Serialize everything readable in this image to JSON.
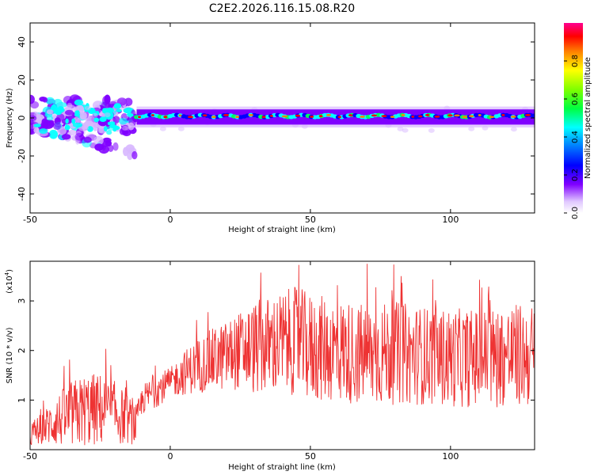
{
  "title": "C2E2.2026.116.15.08.R20",
  "chart_data": [
    {
      "type": "heatmap",
      "name": "spectrogram",
      "xlabel": "Height of straight line (km)",
      "ylabel": "Frequency (Hz)",
      "xlim": [
        -50,
        130
      ],
      "ylim": [
        -50,
        50
      ],
      "xticks": [
        -50,
        0,
        50,
        100
      ],
      "yticks": [
        -40,
        -20,
        0,
        20,
        40
      ],
      "xtick_labels": [
        "-50",
        "0",
        "50",
        "100"
      ],
      "ytick_labels": [
        "-40",
        "-20",
        "0",
        "20",
        "40"
      ],
      "colorbar": {
        "label": "Normalized spectral amplitude",
        "range": [
          0.0,
          1.0
        ],
        "ticks": [
          0.0,
          0.2,
          0.4,
          0.6,
          0.8
        ],
        "tick_labels": [
          "0.0",
          "0.2",
          "0.4",
          "0.6",
          "0.8"
        ],
        "colors": [
          "#ffffff",
          "#d8b8ff",
          "#8000ff",
          "#0000ff",
          "#00ffff",
          "#00ff00",
          "#ffff00",
          "#ff8000",
          "#ff0000",
          "#ff00a0"
        ]
      },
      "band_center_hz": [
        {
          "x": -50,
          "y": 3
        },
        {
          "x": -45,
          "y": 4
        },
        {
          "x": -40,
          "y": 2
        },
        {
          "x": -35,
          "y": 3
        },
        {
          "x": -30,
          "y": 5
        },
        {
          "x": -25,
          "y": 6
        },
        {
          "x": -20,
          "y": 2
        },
        {
          "x": -15,
          "y": 1
        },
        {
          "x": -12,
          "y": 1
        },
        {
          "x": 130,
          "y": 1
        }
      ],
      "scatter_branch_hz": [
        {
          "x": -50,
          "y": -3
        },
        {
          "x": -40,
          "y": -4
        },
        {
          "x": -30,
          "y": -2
        },
        {
          "x": -25,
          "y": -5
        },
        {
          "x": -20,
          "y": -10
        },
        {
          "x": -15,
          "y": -17
        },
        {
          "x": -14,
          "y": -20
        }
      ],
      "colors": {
        "band_peak": "#ff0000",
        "band_mid": "#00ffff",
        "band_edge": "#8000ff",
        "halo": "#d8b8ff"
      }
    },
    {
      "type": "line",
      "name": "snr",
      "xlabel": "Height of straight line (km)",
      "ylabel": "SNR (10 * v/v)",
      "yscale_label": "(x10",
      "yscale_exponent": "4",
      "yscale_close": ")",
      "xlim": [
        -50,
        130
      ],
      "ylim": [
        0,
        3.8
      ],
      "xticks": [
        -50,
        0,
        50,
        100
      ],
      "yticks": [
        1,
        2,
        3
      ],
      "xtick_labels": [
        "-50",
        "0",
        "50",
        "100"
      ],
      "ytick_labels": [
        "1",
        "2",
        "3"
      ],
      "envelope_x": [
        -50,
        -45,
        -40,
        -35,
        -30,
        -25,
        -20,
        -15,
        -12,
        -10,
        -5,
        0,
        5,
        10,
        15,
        20,
        25,
        30,
        35,
        40,
        45,
        50,
        60,
        70,
        80,
        90,
        100,
        110,
        120,
        130
      ],
      "envelope_mean": [
        0.3,
        0.45,
        0.6,
        0.7,
        0.8,
        0.8,
        0.75,
        0.6,
        0.5,
        1.0,
        1.2,
        1.35,
        1.55,
        1.7,
        1.8,
        1.9,
        2.0,
        2.05,
        2.1,
        2.15,
        2.2,
        2.05,
        2.0,
        1.9,
        1.95,
        1.9,
        1.85,
        1.85,
        1.9,
        1.9
      ],
      "envelope_amp": [
        0.25,
        0.35,
        0.55,
        0.7,
        0.75,
        0.75,
        0.65,
        0.5,
        0.4,
        0.3,
        0.35,
        0.3,
        0.45,
        0.55,
        0.65,
        0.7,
        0.8,
        0.95,
        1.0,
        1.05,
        1.1,
        1.1,
        1.05,
        1.05,
        1.05,
        1.0,
        1.0,
        1.0,
        1.05,
        1.05
      ],
      "peak_max": 3.8,
      "color": "#ee3333"
    }
  ]
}
